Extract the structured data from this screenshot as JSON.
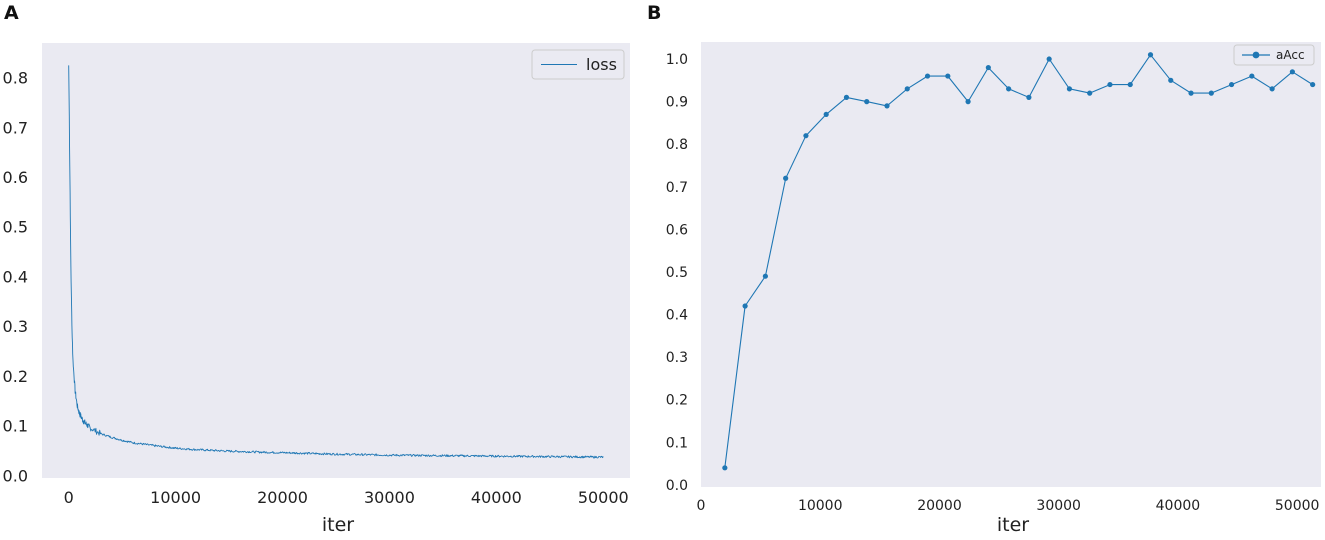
{
  "chart_data": [
    {
      "panel": "A",
      "type": "line",
      "xlabel": "iter",
      "ylabel": "",
      "xlim": [
        -2500,
        52500
      ],
      "ylim": [
        -0.005,
        0.87
      ],
      "xticks": [
        0,
        10000,
        20000,
        30000,
        40000,
        50000
      ],
      "xtick_labels": [
        "0",
        "10000",
        "20000",
        "30000",
        "40000",
        "50000"
      ],
      "yticks": [
        0.0,
        0.1,
        0.2,
        0.3,
        0.4,
        0.5,
        0.6,
        0.7,
        0.8
      ],
      "ytick_labels": [
        "0.0",
        "0.1",
        "0.2",
        "0.3",
        "0.4",
        "0.5",
        "0.6",
        "0.7",
        "0.8"
      ],
      "grid": false,
      "legend_position": "top-right",
      "series": [
        {
          "name": "loss",
          "color": "#1f77b4",
          "x": [
            0,
            100,
            200,
            300,
            400,
            600,
            800,
            1000,
            1300,
            1600,
            2000,
            2500,
            3000,
            4000,
            5000,
            6000,
            8000,
            10000,
            12000,
            15000,
            18000,
            20000,
            25000,
            30000,
            35000,
            40000,
            45000,
            50000
          ],
          "y": [
            0.825,
            0.62,
            0.42,
            0.3,
            0.23,
            0.17,
            0.14,
            0.125,
            0.112,
            0.104,
            0.096,
            0.09,
            0.084,
            0.077,
            0.071,
            0.066,
            0.06,
            0.055,
            0.052,
            0.049,
            0.047,
            0.046,
            0.043,
            0.041,
            0.04,
            0.039,
            0.038,
            0.037
          ]
        }
      ]
    },
    {
      "panel": "B",
      "type": "line",
      "xlabel": "iter",
      "ylabel": "",
      "xlim": [
        0,
        52000
      ],
      "ylim": [
        -0.005,
        1.04
      ],
      "xticks": [
        0,
        10000,
        20000,
        30000,
        40000,
        50000
      ],
      "xtick_labels": [
        "0",
        "10000",
        "20000",
        "30000",
        "40000",
        "50000"
      ],
      "yticks": [
        0.0,
        0.1,
        0.2,
        0.3,
        0.4,
        0.5,
        0.6,
        0.7,
        0.8,
        0.9,
        1.0
      ],
      "ytick_labels": [
        "0.0",
        "0.1",
        "0.2",
        "0.3",
        "0.4",
        "0.5",
        "0.6",
        "0.7",
        "0.8",
        "0.9",
        "1.0"
      ],
      "grid": false,
      "legend_position": "top-right",
      "series": [
        {
          "name": "aAcc",
          "color": "#1f77b4",
          "marker": "circle",
          "x": [
            2000,
            3700,
            5400,
            7100,
            8800,
            10500,
            12200,
            13900,
            15600,
            17300,
            19000,
            20700,
            22400,
            24100,
            25800,
            27500,
            29200,
            30900,
            32600,
            34300,
            36000,
            37700,
            39400,
            41100,
            42800,
            44500,
            46200,
            47900,
            49600,
            51300
          ],
          "y": [
            0.04,
            0.42,
            0.49,
            0.72,
            0.82,
            0.87,
            0.91,
            0.9,
            0.89,
            0.93,
            0.96,
            0.96,
            0.9,
            0.98,
            0.93,
            0.91,
            1.0,
            0.93,
            0.92,
            0.94,
            0.94,
            1.01,
            0.95,
            0.92,
            0.92,
            0.94,
            0.96,
            0.93,
            0.97,
            0.94
          ]
        }
      ]
    }
  ],
  "style": {
    "plot_background": "#eaeaf2",
    "figure_background": "#ffffff",
    "line_color": "#1f77b4",
    "legend_background": "#eaeaf2",
    "legend_border": "#cccccc"
  }
}
